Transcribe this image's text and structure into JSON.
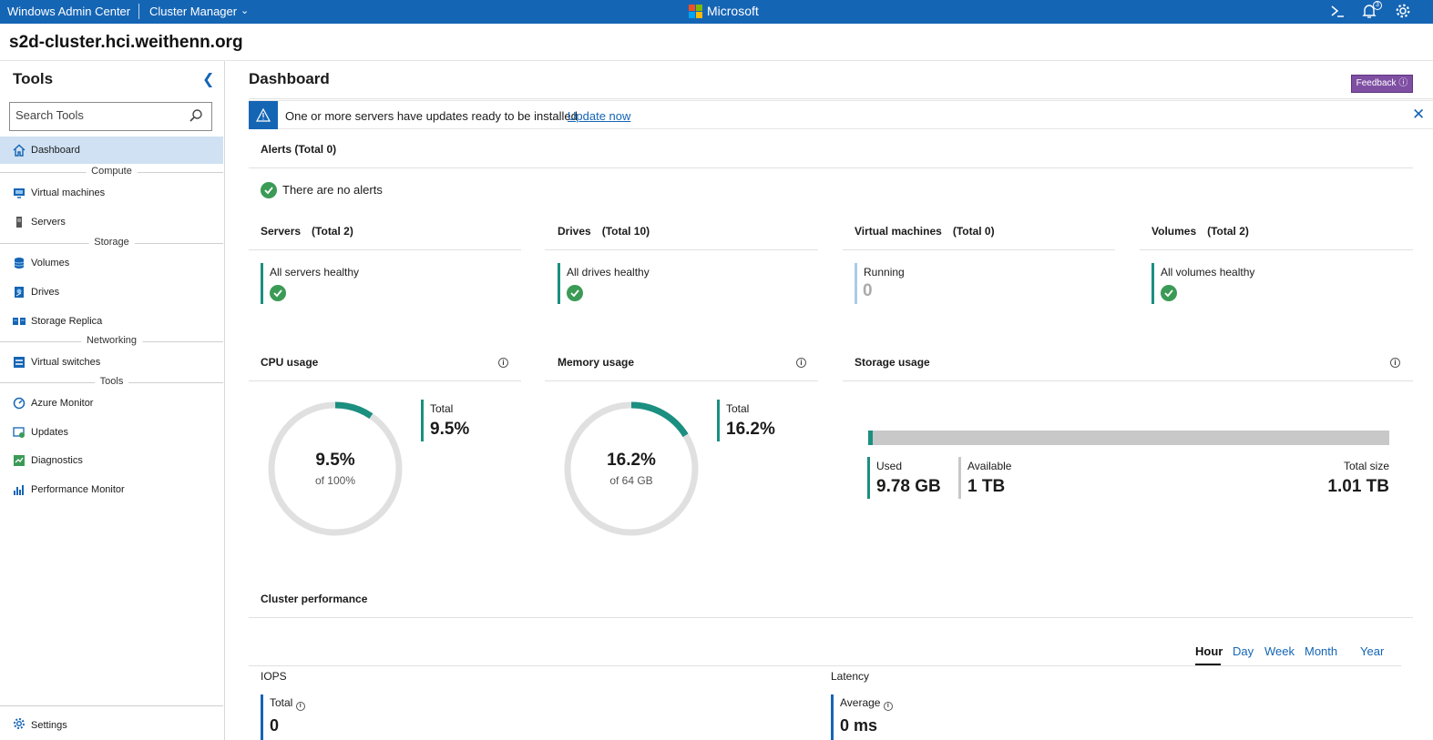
{
  "header": {
    "app_name": "Windows Admin Center",
    "context": "Cluster Manager",
    "brand": "Microsoft",
    "notification_count": "3"
  },
  "cluster_name": "s2d-cluster.hci.weithenn.org",
  "sidebar": {
    "title": "Tools",
    "search_placeholder": "Search Tools",
    "items": [
      {
        "label": "Dashboard",
        "icon": "home-icon",
        "active": true
      },
      {
        "group": "Compute"
      },
      {
        "label": "Virtual machines",
        "icon": "virtual-machine-icon"
      },
      {
        "label": "Servers",
        "icon": "server-icon"
      },
      {
        "group": "Storage"
      },
      {
        "label": "Volumes",
        "icon": "volumes-icon"
      },
      {
        "label": "Drives",
        "icon": "drive-icon"
      },
      {
        "label": "Storage Replica",
        "icon": "storage-replica-icon"
      },
      {
        "group": "Networking"
      },
      {
        "label": "Virtual switches",
        "icon": "virtual-switch-icon"
      },
      {
        "group": "Tools"
      },
      {
        "label": "Azure Monitor",
        "icon": "azure-monitor-icon"
      },
      {
        "label": "Updates",
        "icon": "updates-icon"
      },
      {
        "label": "Diagnostics",
        "icon": "diagnostics-icon"
      },
      {
        "label": "Performance Monitor",
        "icon": "performance-monitor-icon"
      }
    ],
    "settings_label": "Settings"
  },
  "main": {
    "title": "Dashboard",
    "feedback_label": "Feedback ⓘ",
    "banner": {
      "message": "One or more servers have updates ready to be installed",
      "link": "Update now"
    },
    "alerts": {
      "title": "Alerts (Total 0)",
      "empty_text": "There are no alerts"
    },
    "summary": [
      {
        "title": "Servers",
        "total": "(Total 2)",
        "status": "All servers healthy",
        "healthy": true
      },
      {
        "title": "Drives",
        "total": "(Total 10)",
        "status": "All drives healthy",
        "healthy": true
      },
      {
        "title": "Virtual machines",
        "total": "(Total 0)",
        "status": "Running",
        "value": "0"
      },
      {
        "title": "Volumes",
        "total": "(Total 2)",
        "status": "All volumes healthy",
        "healthy": true
      }
    ],
    "cpu": {
      "title": "CPU usage",
      "total_label": "Total",
      "total": "9.5%",
      "center": "9.5%",
      "sub": "of 100%",
      "percent": 9.5
    },
    "memory": {
      "title": "Memory usage",
      "total_label": "Total",
      "total": "16.2%",
      "center": "16.2%",
      "sub": "of 64 GB",
      "percent": 16.2
    },
    "storage": {
      "title": "Storage usage",
      "used_label": "Used",
      "used": "9.78 GB",
      "available_label": "Available",
      "available": "1 TB",
      "total_label": "Total size",
      "total": "1.01 TB",
      "used_fraction": 0.0095
    },
    "performance": {
      "title": "Cluster performance",
      "ranges": [
        "Hour",
        "Day",
        "Week",
        "Month",
        "Year"
      ],
      "selected_range": "Hour",
      "iops": {
        "title": "IOPS",
        "label": "Total",
        "value": "0"
      },
      "latency": {
        "title": "Latency",
        "label": "Average",
        "value": "0 ms"
      }
    }
  },
  "colors": {
    "header_blue": "#1565b5",
    "accent_teal": "#1b8f80",
    "healthy_green": "#3b9b56",
    "feedback_purple": "#7f4fa3"
  }
}
